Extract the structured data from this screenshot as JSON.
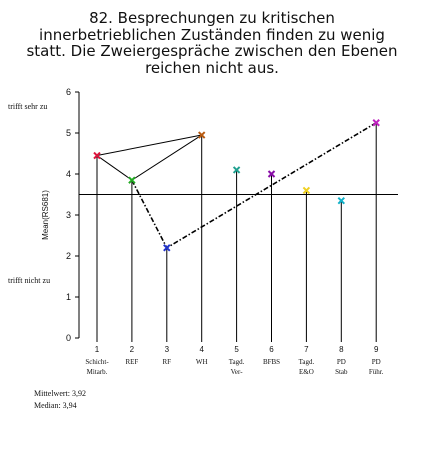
{
  "title_lines": [
    "82. Besprechungen zu kritischen",
    "innerbetrieblichen Zuständen finden zu wenig",
    "statt. Die Zweiergespräche zwischen den Ebenen",
    "reichen nicht aus."
  ],
  "chart_data": {
    "type": "line",
    "x": [
      1,
      2,
      3,
      4,
      5,
      6,
      7,
      8,
      9
    ],
    "categories": [
      [
        "Schicht-",
        "Mitarb."
      ],
      [
        "REF"
      ],
      [
        "RF"
      ],
      [
        "WH"
      ],
      [
        "Tagd.",
        "Ver-"
      ],
      [
        "BFBS"
      ],
      [
        "Tagd.",
        "E&O"
      ],
      [
        "PD",
        "Stab"
      ],
      [
        "PD",
        "Führ."
      ]
    ],
    "values": [
      4.45,
      3.85,
      2.2,
      4.95,
      4.1,
      4.0,
      3.6,
      3.35,
      5.25
    ],
    "marker_colors": [
      "#dc143c",
      "#22aa22",
      "#2233cc",
      "#b85a10",
      "#20a090",
      "#8a10a8",
      "#f0d020",
      "#10b0c8",
      "#c020c0"
    ],
    "ylabel": "Mean(RS681)",
    "ylim": [
      0,
      6
    ],
    "yticks": [
      0,
      1,
      2,
      3,
      4,
      5,
      6
    ],
    "reference_line": 3.5,
    "y_annotations": {
      "top": "trifft sehr zu",
      "bottom": "trifft nicht zu"
    },
    "connections": {
      "solid_line_points": [
        1,
        2,
        4,
        1
      ],
      "dashdot_line_points": [
        2,
        3,
        9
      ]
    },
    "stats": {
      "mean_label": "Mittelwert: 3,92",
      "median_label": "Median: 3,94"
    }
  }
}
